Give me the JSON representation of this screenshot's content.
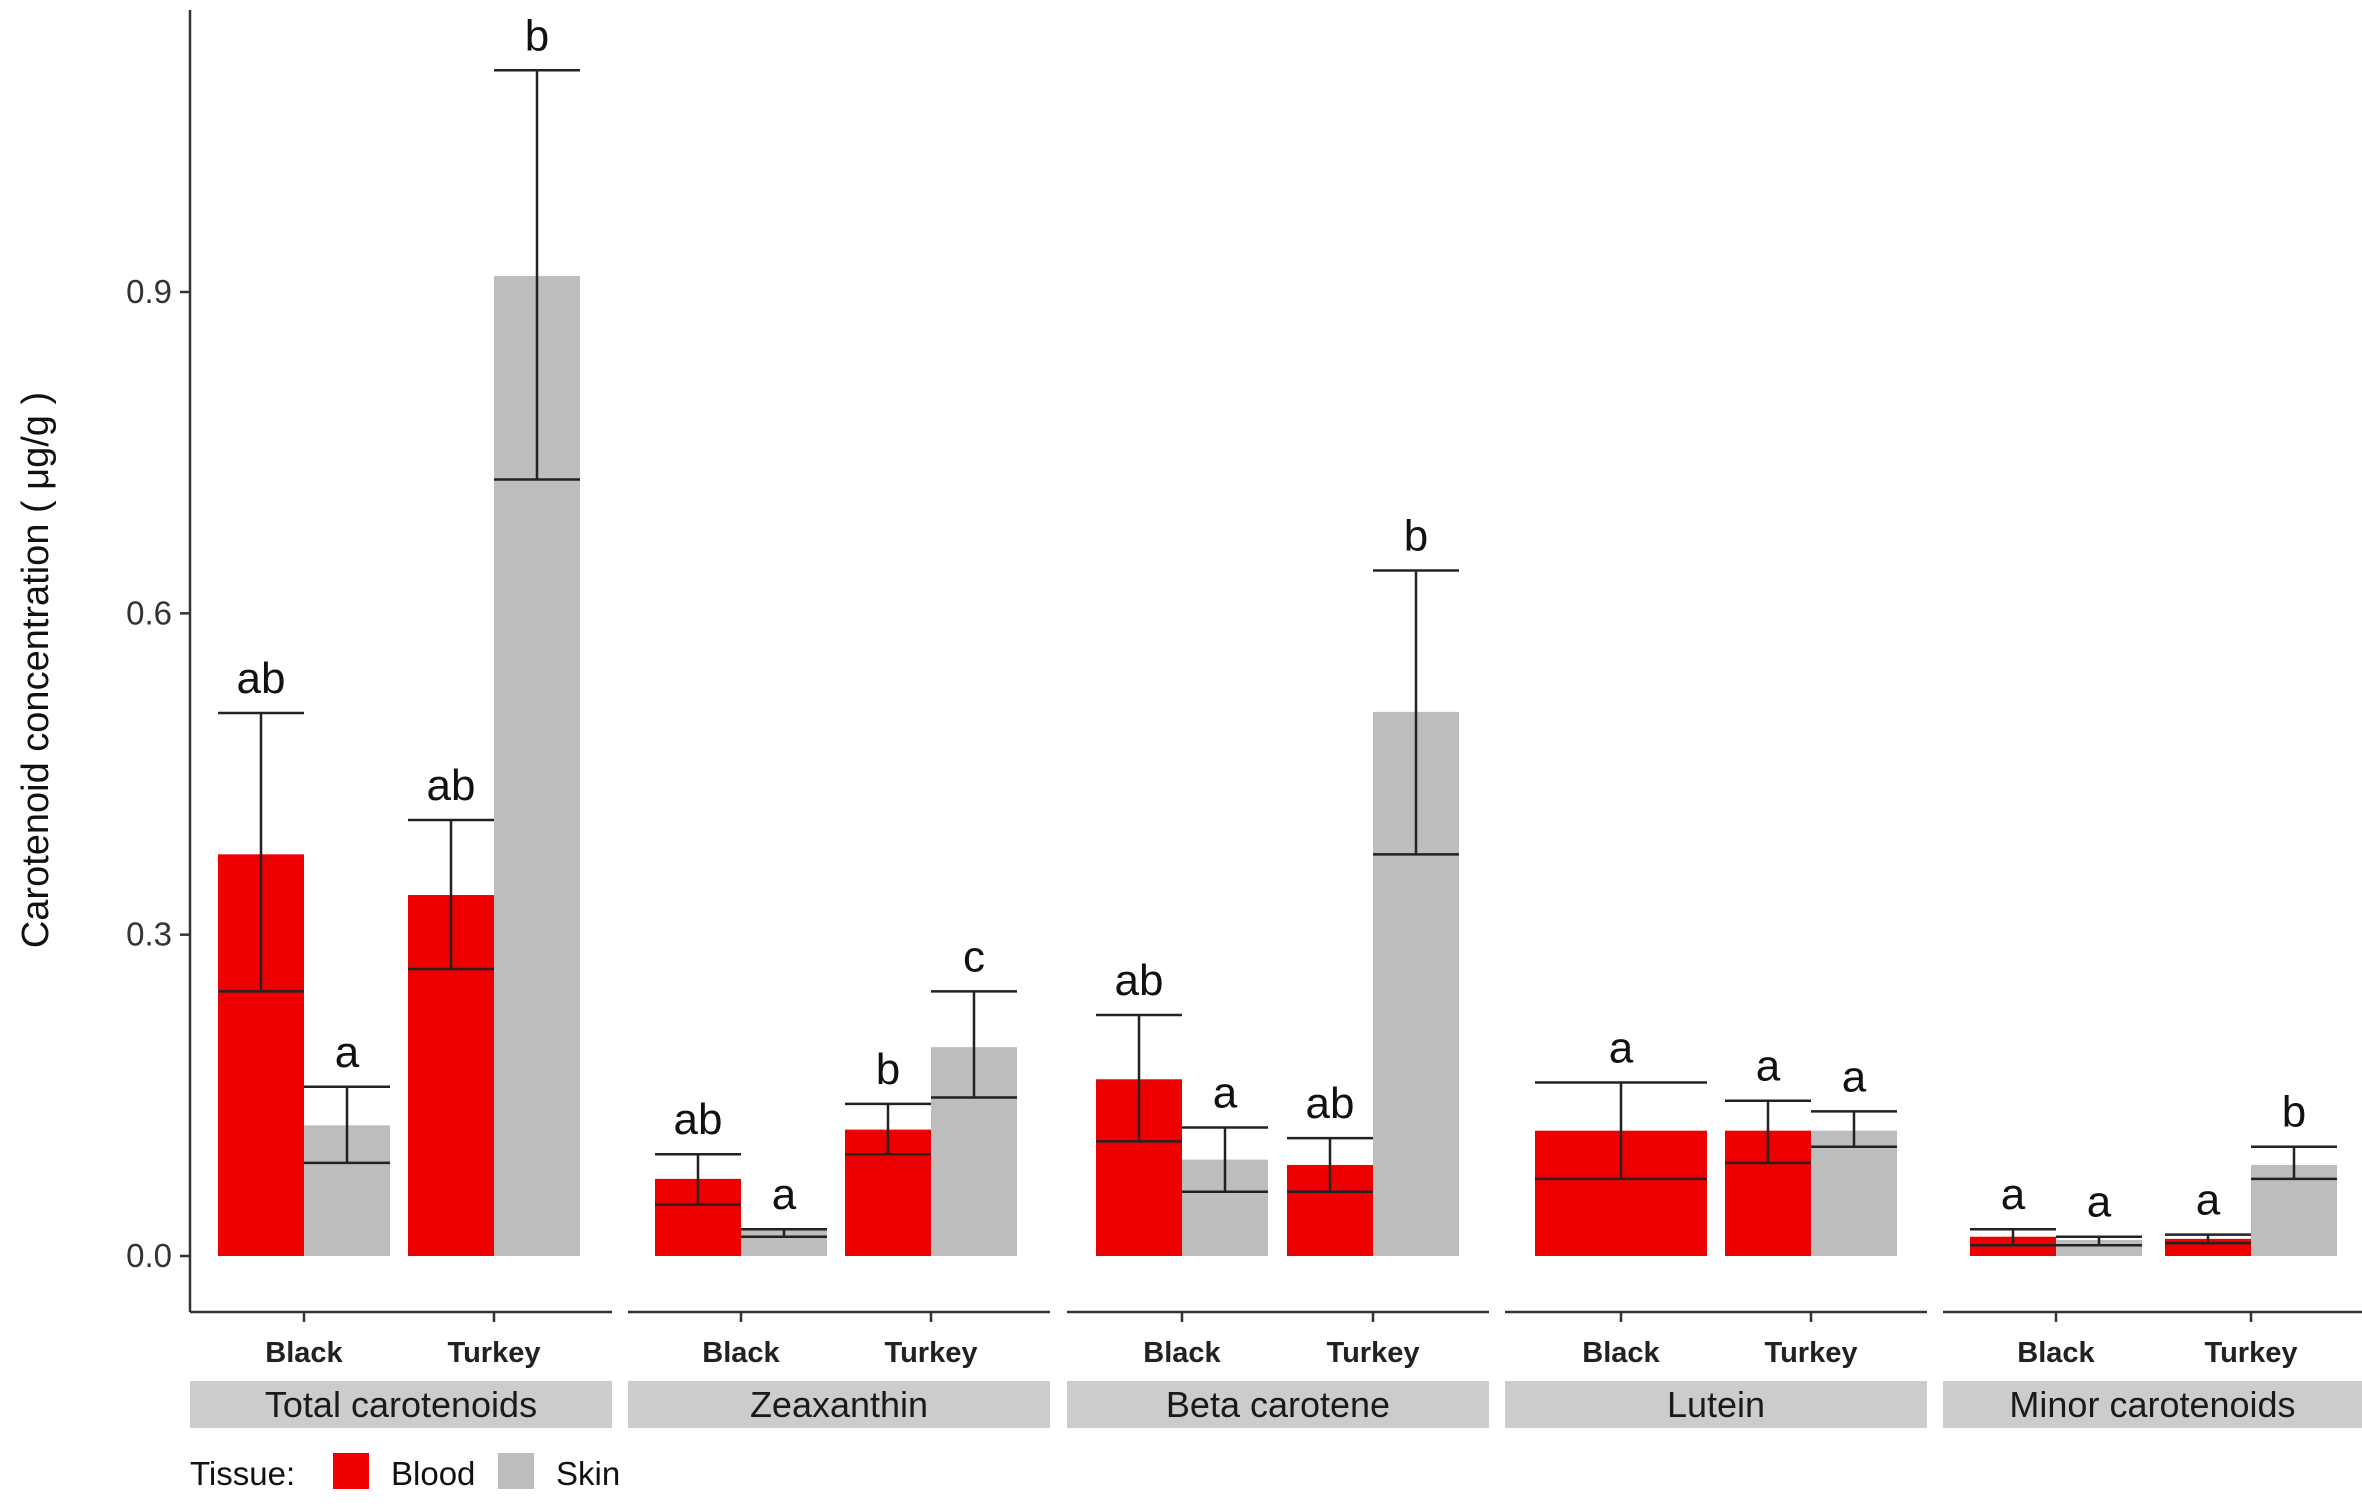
{
  "chart_data": {
    "type": "bar",
    "ylabel": "Carotenoid concentration ( μg/g )",
    "yticks": [
      0.0,
      0.3,
      0.6,
      0.9
    ],
    "ytick_labels": [
      "0.0",
      "0.3",
      "0.6",
      "0.9"
    ],
    "ylim": [
      -0.05,
      1.17
    ],
    "legend": {
      "title": "Tissue:",
      "placement": "bottom-left",
      "entries": [
        {
          "name": "Blood",
          "color": "#ee0000"
        },
        {
          "name": "Skin",
          "color": "#bdbdbd"
        }
      ]
    },
    "panels": [
      {
        "label": "Total carotenoids",
        "groups": [
          {
            "category": "Black",
            "bars": [
              {
                "tissue": "Blood",
                "value": 0.375,
                "err_low": 0.247,
                "err_high": 0.507,
                "sig": "ab"
              },
              {
                "tissue": "Skin",
                "value": 0.122,
                "err_low": 0.087,
                "err_high": 0.158,
                "sig": "a"
              }
            ]
          },
          {
            "category": "Turkey",
            "bars": [
              {
                "tissue": "Blood",
                "value": 0.337,
                "err_low": 0.268,
                "err_high": 0.407,
                "sig": "ab"
              },
              {
                "tissue": "Skin",
                "value": 0.915,
                "err_low": 0.725,
                "err_high": 1.107,
                "sig": "b"
              }
            ]
          }
        ]
      },
      {
        "label": "Zeaxanthin",
        "groups": [
          {
            "category": "Black",
            "bars": [
              {
                "tissue": "Blood",
                "value": 0.072,
                "err_low": 0.048,
                "err_high": 0.095,
                "sig": "ab"
              },
              {
                "tissue": "Skin",
                "value": 0.025,
                "err_low": 0.018,
                "err_high": 0.025,
                "sig": "a"
              }
            ]
          },
          {
            "category": "Turkey",
            "bars": [
              {
                "tissue": "Blood",
                "value": 0.118,
                "err_low": 0.095,
                "err_high": 0.142,
                "sig": "b"
              },
              {
                "tissue": "Skin",
                "value": 0.195,
                "err_low": 0.148,
                "err_high": 0.247,
                "sig": "c"
              }
            ]
          }
        ]
      },
      {
        "label": "Beta carotene",
        "groups": [
          {
            "category": "Black",
            "bars": [
              {
                "tissue": "Blood",
                "value": 0.165,
                "err_low": 0.107,
                "err_high": 0.225,
                "sig": "ab"
              },
              {
                "tissue": "Skin",
                "value": 0.09,
                "err_low": 0.06,
                "err_high": 0.12,
                "sig": "a"
              }
            ]
          },
          {
            "category": "Turkey",
            "bars": [
              {
                "tissue": "Blood",
                "value": 0.085,
                "err_low": 0.06,
                "err_high": 0.11,
                "sig": "ab"
              },
              {
                "tissue": "Skin",
                "value": 0.508,
                "err_low": 0.375,
                "err_high": 0.64,
                "sig": "b"
              }
            ]
          }
        ]
      },
      {
        "label": "Lutein",
        "groups": [
          {
            "category": "Black",
            "bars": [
              {
                "tissue": "Blood",
                "value": 0.117,
                "err_low": 0.072,
                "err_high": 0.162,
                "sig": "a"
              }
            ]
          },
          {
            "category": "Turkey",
            "bars": [
              {
                "tissue": "Blood",
                "value": 0.117,
                "err_low": 0.087,
                "err_high": 0.145,
                "sig": "a"
              },
              {
                "tissue": "Skin",
                "value": 0.117,
                "err_low": 0.102,
                "err_high": 0.135,
                "sig": "a"
              }
            ]
          }
        ]
      },
      {
        "label": "Minor carotenoids",
        "groups": [
          {
            "category": "Black",
            "bars": [
              {
                "tissue": "Blood",
                "value": 0.018,
                "err_low": 0.01,
                "err_high": 0.025,
                "sig": "a"
              },
              {
                "tissue": "Skin",
                "value": 0.015,
                "err_low": 0.01,
                "err_high": 0.018,
                "sig": "a"
              }
            ]
          },
          {
            "category": "Turkey",
            "bars": [
              {
                "tissue": "Blood",
                "value": 0.016,
                "err_low": 0.012,
                "err_high": 0.02,
                "sig": "a"
              },
              {
                "tissue": "Skin",
                "value": 0.085,
                "err_low": 0.072,
                "err_high": 0.102,
                "sig": "b"
              }
            ]
          }
        ]
      }
    ]
  }
}
